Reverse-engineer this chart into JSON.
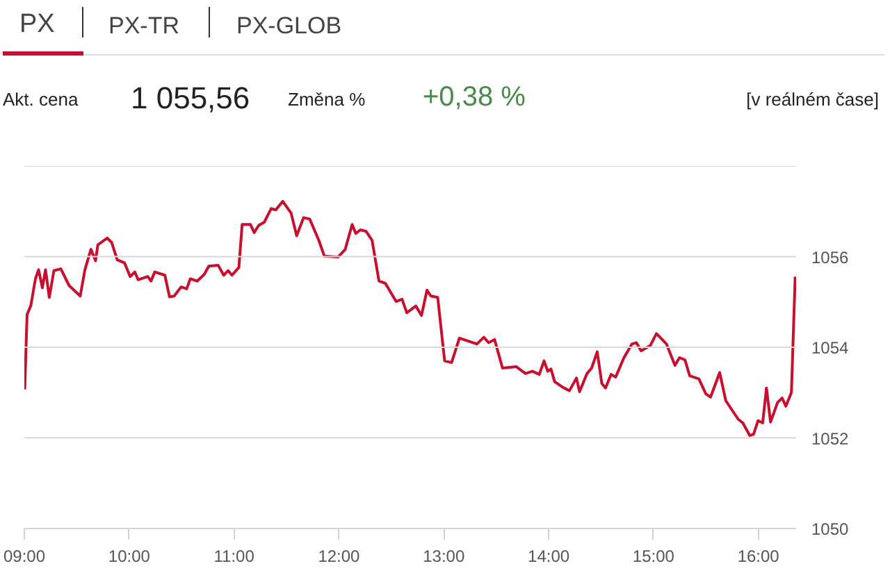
{
  "chart_data": {
    "type": "line",
    "title": "PX",
    "annotations": [
      "PX-TR",
      "PX-GLOB",
      "Akt. cena",
      "1 055,56",
      "Změna %",
      "+0,38 %",
      "[v reálném čase]"
    ],
    "x": [
      9.004,
      9.026,
      9.062,
      9.106,
      9.136,
      9.172,
      9.202,
      9.238,
      9.282,
      9.348,
      9.427,
      9.533,
      9.578,
      9.635,
      9.679,
      9.701,
      9.79,
      9.833,
      9.886,
      9.956,
      10.009,
      10.054,
      10.085,
      10.177,
      10.208,
      10.243,
      10.34,
      10.385,
      10.429,
      10.495,
      10.548,
      10.583,
      10.649,
      10.716,
      10.759,
      10.848,
      10.901,
      10.944,
      10.98,
      11.046,
      11.077,
      11.156,
      11.192,
      11.235,
      11.288,
      11.354,
      11.398,
      11.464,
      11.544,
      11.597,
      11.663,
      11.721,
      11.808,
      11.861,
      11.993,
      12.06,
      12.126,
      12.161,
      12.205,
      12.258,
      12.316,
      12.382,
      12.443,
      12.545,
      12.602,
      12.647,
      12.734,
      12.787,
      12.84,
      12.876,
      12.942,
      13.008,
      13.074,
      13.149,
      13.316,
      13.382,
      13.427,
      13.484,
      13.56,
      13.692,
      13.779,
      13.845,
      13.911,
      13.956,
      13.991,
      14.022,
      14.057,
      14.132,
      14.198,
      14.265,
      14.295,
      14.366,
      14.41,
      14.463,
      14.507,
      14.542,
      14.595,
      14.639,
      14.718,
      14.794,
      14.837,
      14.882,
      14.97,
      15.028,
      15.124,
      15.204,
      15.248,
      15.3,
      15.345,
      15.433,
      15.499,
      15.544,
      15.631,
      15.689,
      15.808,
      15.852,
      15.918,
      15.954,
      15.997,
      16.041,
      16.077,
      16.116,
      16.183,
      16.226,
      16.262,
      16.315,
      16.351
    ],
    "series": [
      {
        "color": "#c8102e",
        "values": [
          1053.07,
          1054.72,
          1054.92,
          1055.51,
          1055.71,
          1055.31,
          1055.71,
          1055.1,
          1055.69,
          1055.73,
          1055.36,
          1055.13,
          1055.71,
          1056.16,
          1055.91,
          1056.26,
          1056.41,
          1056.31,
          1055.93,
          1055.86,
          1055.56,
          1055.66,
          1055.49,
          1055.56,
          1055.46,
          1055.66,
          1055.59,
          1055.11,
          1055.13,
          1055.33,
          1055.29,
          1055.51,
          1055.46,
          1055.61,
          1055.79,
          1055.81,
          1055.59,
          1055.69,
          1055.59,
          1055.76,
          1056.71,
          1056.71,
          1056.53,
          1056.69,
          1056.76,
          1057.06,
          1057.03,
          1057.22,
          1056.96,
          1056.46,
          1056.86,
          1056.83,
          1056.36,
          1056.01,
          1055.99,
          1056.16,
          1056.71,
          1056.51,
          1056.59,
          1056.56,
          1056.36,
          1055.46,
          1055.41,
          1055.01,
          1055.06,
          1054.76,
          1054.91,
          1054.7,
          1055.26,
          1055.13,
          1055.1,
          1053.7,
          1053.66,
          1054.2,
          1054.07,
          1054.22,
          1054.1,
          1054.17,
          1053.54,
          1053.57,
          1053.42,
          1053.47,
          1053.4,
          1053.7,
          1053.47,
          1053.52,
          1053.24,
          1053.12,
          1053.04,
          1053.32,
          1053.02,
          1053.42,
          1053.54,
          1053.9,
          1053.2,
          1053.1,
          1053.4,
          1053.34,
          1053.77,
          1054.07,
          1054.1,
          1053.92,
          1054.04,
          1054.3,
          1054.07,
          1053.6,
          1053.77,
          1053.72,
          1053.37,
          1053.3,
          1052.97,
          1052.9,
          1053.44,
          1052.82,
          1052.41,
          1052.33,
          1052.05,
          1052.08,
          1052.38,
          1052.33,
          1053.1,
          1052.35,
          1052.78,
          1052.88,
          1052.7,
          1053.0,
          1055.56
        ]
      }
    ],
    "xlim": [
      9,
      16.36
    ],
    "ylim": [
      1050,
      1058
    ],
    "xticks": [
      {
        "value": 9,
        "label": "09:00"
      },
      {
        "value": 10,
        "label": "10:00"
      },
      {
        "value": 11,
        "label": "11:00"
      },
      {
        "value": 12,
        "label": "12:00"
      },
      {
        "value": 13,
        "label": "13:00"
      },
      {
        "value": 14,
        "label": "14:00"
      },
      {
        "value": 15,
        "label": "15:00"
      },
      {
        "value": 16,
        "label": "16:00"
      }
    ],
    "yticks": [
      1050,
      1052,
      1054,
      1056,
      {
        "value": 1058,
        "label": null
      }
    ],
    "grid": "y",
    "line_style": "solid"
  }
}
